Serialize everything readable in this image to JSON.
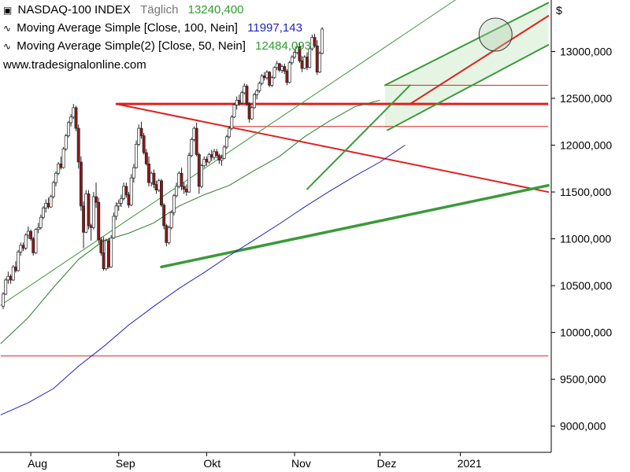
{
  "header": {
    "symbol": "NASDAQ-100 INDEX",
    "period": "Täglich",
    "last_price": "13240,400",
    "ma100_label": "Moving Average Simple  [Close, 100, Nein]",
    "ma100_value": "11997,143",
    "ma50_label": "Moving Average Simple(2)  [Close, 50, Nein]",
    "ma50_value": "12484,093",
    "source": "www.tradesignalonline.com",
    "currency": "$"
  },
  "colors": {
    "up_candle": "#ffffff",
    "down_candle": "#8b1a1a",
    "ma100": "#1f1fbf",
    "ma50": "#2e7d2e",
    "trend_green": "#3a9a3a",
    "resistance_red": "#e02020",
    "last_price_green": "#2e9d2e"
  },
  "chart_data": {
    "type": "candlestick",
    "title": "NASDAQ-100 INDEX",
    "x_tick_labels": [
      "Aug",
      "Sep",
      "Okt",
      "Nov",
      "Dez",
      "2021"
    ],
    "y_tick_labels": [
      "9000,000",
      "9500,000",
      "10000,000",
      "10500,000",
      "11000,000",
      "11500,000",
      "12000,000",
      "12500,000",
      "13000,000"
    ],
    "y_ticks": [
      9000,
      9500,
      10000,
      10500,
      11000,
      11500,
      12000,
      12500,
      13000
    ],
    "ylim": [
      8720,
      13550
    ],
    "candles": [
      [
        10280,
        10430,
        10250,
        10410
      ],
      [
        10410,
        10580,
        10400,
        10560
      ],
      [
        10560,
        10650,
        10520,
        10600
      ],
      [
        10600,
        10620,
        10520,
        10560
      ],
      [
        10560,
        10720,
        10550,
        10700
      ],
      [
        10700,
        10760,
        10640,
        10660
      ],
      [
        10660,
        10880,
        10650,
        10860
      ],
      [
        10860,
        10960,
        10820,
        10930
      ],
      [
        10930,
        10960,
        10870,
        10900
      ],
      [
        10900,
        11060,
        10880,
        11040
      ],
      [
        11040,
        11130,
        11000,
        11080
      ],
      [
        11080,
        11100,
        10980,
        11000
      ],
      [
        11000,
        11020,
        10820,
        10850
      ],
      [
        10850,
        11110,
        10840,
        11100
      ],
      [
        11100,
        11170,
        11060,
        11120
      ],
      [
        11120,
        11260,
        11100,
        11230
      ],
      [
        11230,
        11350,
        11210,
        11330
      ],
      [
        11330,
        11420,
        11280,
        11380
      ],
      [
        11380,
        11440,
        11320,
        11340
      ],
      [
        11340,
        11470,
        11330,
        11450
      ],
      [
        11450,
        11620,
        11430,
        11600
      ],
      [
        11600,
        11720,
        11560,
        11700
      ],
      [
        11700,
        11820,
        11680,
        11800
      ],
      [
        11800,
        11880,
        11740,
        11760
      ],
      [
        11760,
        11980,
        11750,
        11960
      ],
      [
        11960,
        12120,
        11940,
        12100
      ],
      [
        12100,
        12260,
        12080,
        12240
      ],
      [
        12240,
        12330,
        12200,
        12300
      ],
      [
        12300,
        12440,
        12280,
        12400
      ],
      [
        12400,
        12420,
        12150,
        12180
      ],
      [
        12180,
        12220,
        11750,
        11820
      ],
      [
        11820,
        11880,
        11300,
        11350
      ],
      [
        11350,
        11400,
        10900,
        11070
      ],
      [
        11070,
        11520,
        11060,
        11480
      ],
      [
        11480,
        11520,
        11100,
        11140
      ],
      [
        11140,
        11160,
        10980,
        11120
      ],
      [
        11120,
        11500,
        11100,
        11450
      ],
      [
        11450,
        11600,
        11330,
        11390
      ],
      [
        11390,
        11440,
        10950,
        10990
      ],
      [
        10990,
        11020,
        10820,
        10850
      ],
      [
        10850,
        11020,
        10660,
        10680
      ],
      [
        10680,
        11000,
        10660,
        10980
      ],
      [
        10980,
        11010,
        10680,
        10700
      ],
      [
        10700,
        11040,
        10690,
        11010
      ],
      [
        11010,
        11280,
        11000,
        11240
      ],
      [
        11240,
        11390,
        11200,
        11350
      ],
      [
        11350,
        11420,
        11300,
        11380
      ],
      [
        11380,
        11470,
        11340,
        11430
      ],
      [
        11430,
        11600,
        11410,
        11560
      ],
      [
        11560,
        11600,
        11440,
        11470
      ],
      [
        11470,
        11500,
        11330,
        11360
      ],
      [
        11360,
        11690,
        11350,
        11650
      ],
      [
        11650,
        11800,
        11600,
        11760
      ],
      [
        11760,
        12050,
        11750,
        12010
      ],
      [
        12010,
        12220,
        11990,
        12180
      ],
      [
        12180,
        12250,
        12070,
        12100
      ],
      [
        12100,
        12130,
        11900,
        11920
      ],
      [
        11920,
        11960,
        11780,
        11800
      ],
      [
        11800,
        11880,
        11560,
        11600
      ],
      [
        11600,
        11720,
        11560,
        11700
      ],
      [
        11700,
        11740,
        11540,
        11580
      ],
      [
        11580,
        11620,
        11480,
        11520
      ],
      [
        11520,
        11640,
        11500,
        11620
      ],
      [
        11620,
        11640,
        11340,
        11360
      ],
      [
        11360,
        11380,
        11100,
        11140
      ],
      [
        11140,
        11160,
        10920,
        10960
      ],
      [
        10960,
        11140,
        10940,
        11120
      ],
      [
        11120,
        11300,
        11100,
        11280
      ],
      [
        11280,
        11480,
        11250,
        11460
      ],
      [
        11460,
        11600,
        11440,
        11560
      ],
      [
        11560,
        11720,
        11540,
        11700
      ],
      [
        11700,
        11760,
        11520,
        11560
      ],
      [
        11560,
        11600,
        11480,
        11530
      ],
      [
        11530,
        11580,
        11460,
        11500
      ],
      [
        11500,
        11920,
        11490,
        11890
      ],
      [
        11890,
        12080,
        11870,
        12060
      ],
      [
        12060,
        12200,
        12040,
        12180
      ],
      [
        12180,
        12240,
        11880,
        11900
      ],
      [
        11900,
        11920,
        11480,
        11560
      ],
      [
        11560,
        11800,
        11540,
        11780
      ],
      [
        11780,
        11880,
        11760,
        11850
      ],
      [
        11850,
        11880,
        11780,
        11820
      ],
      [
        11820,
        11920,
        11800,
        11900
      ],
      [
        11900,
        11950,
        11830,
        11870
      ],
      [
        11870,
        11960,
        11840,
        11930
      ],
      [
        11930,
        11960,
        11860,
        11890
      ],
      [
        11890,
        11910,
        11800,
        11840
      ],
      [
        11840,
        11900,
        11780,
        11860
      ],
      [
        11860,
        12000,
        11850,
        11980
      ],
      [
        11980,
        12110,
        11960,
        12090
      ],
      [
        12090,
        12200,
        12070,
        12180
      ],
      [
        12180,
        12320,
        12160,
        12300
      ],
      [
        12300,
        12450,
        12290,
        12430
      ],
      [
        12430,
        12520,
        12380,
        12480
      ],
      [
        12480,
        12540,
        12420,
        12450
      ],
      [
        12450,
        12580,
        12440,
        12560
      ],
      [
        12560,
        12660,
        12540,
        12630
      ],
      [
        12630,
        12650,
        12420,
        12440
      ],
      [
        12440,
        12460,
        12240,
        12280
      ],
      [
        12280,
        12420,
        12270,
        12400
      ],
      [
        12400,
        12560,
        12390,
        12540
      ],
      [
        12540,
        12600,
        12490,
        12580
      ],
      [
        12580,
        12680,
        12560,
        12660
      ],
      [
        12660,
        12760,
        12640,
        12740
      ],
      [
        12740,
        12780,
        12690,
        12720
      ],
      [
        12720,
        12800,
        12700,
        12780
      ],
      [
        12780,
        12790,
        12620,
        12640
      ],
      [
        12640,
        12740,
        12620,
        12720
      ],
      [
        12720,
        12840,
        12710,
        12830
      ],
      [
        12830,
        12900,
        12800,
        12870
      ],
      [
        12870,
        12880,
        12780,
        12800
      ],
      [
        12800,
        12860,
        12770,
        12840
      ],
      [
        12840,
        12870,
        12760,
        12790
      ],
      [
        12790,
        12810,
        12640,
        12670
      ],
      [
        12670,
        12900,
        12660,
        12880
      ],
      [
        12880,
        12960,
        12860,
        12940
      ],
      [
        12940,
        13020,
        12920,
        12990
      ],
      [
        12990,
        13080,
        12970,
        13050
      ],
      [
        13050,
        13090,
        12880,
        12900
      ],
      [
        12900,
        12950,
        12780,
        12820
      ],
      [
        12820,
        12960,
        12810,
        12940
      ],
      [
        12940,
        12990,
        12800,
        12830
      ],
      [
        12830,
        13050,
        12820,
        13030
      ],
      [
        13030,
        13180,
        13010,
        13150
      ],
      [
        13150,
        13190,
        13040,
        13060
      ],
      [
        13060,
        13120,
        12750,
        12780
      ],
      [
        12780,
        13000,
        12770,
        12980
      ],
      [
        12980,
        13260,
        12970,
        13240
      ]
    ],
    "ma100": [
      [
        -1,
        9120
      ],
      [
        10,
        9250
      ],
      [
        20,
        9400
      ],
      [
        30,
        9640
      ],
      [
        40,
        9850
      ],
      [
        50,
        10080
      ],
      [
        60,
        10280
      ],
      [
        70,
        10470
      ],
      [
        80,
        10640
      ],
      [
        90,
        10820
      ],
      [
        100,
        10990
      ],
      [
        110,
        11160
      ],
      [
        120,
        11340
      ],
      [
        130,
        11510
      ],
      [
        140,
        11670
      ],
      [
        150,
        11820
      ],
      [
        160,
        12000
      ]
    ],
    "ma50": [
      [
        -1,
        9880
      ],
      [
        10,
        10160
      ],
      [
        20,
        10480
      ],
      [
        30,
        10780
      ],
      [
        40,
        10980
      ],
      [
        50,
        11060
      ],
      [
        60,
        11170
      ],
      [
        70,
        11350
      ],
      [
        80,
        11470
      ],
      [
        90,
        11570
      ],
      [
        100,
        11730
      ],
      [
        110,
        11880
      ],
      [
        120,
        12090
      ],
      [
        130,
        12260
      ],
      [
        140,
        12410
      ],
      [
        150,
        12480
      ]
    ],
    "horizontal_lines": [
      {
        "y": 12440,
        "x0": 45,
        "x1": 217,
        "weight": "thick",
        "color": "red"
      },
      {
        "y": 12640,
        "x0": 152,
        "x1": 217,
        "weight": "thin",
        "color": "red"
      },
      {
        "y": 12200,
        "x0": 88,
        "x1": 217,
        "weight": "thin",
        "color": "red"
      },
      {
        "y": 9750,
        "x0": -1,
        "x1": 217,
        "weight": "thin",
        "color": "red"
      }
    ],
    "trend_lines": [
      {
        "x0": 45,
        "y0": 12440,
        "x1": 217,
        "y1": 11500,
        "color": "red",
        "weight": "medium"
      },
      {
        "x0": 63,
        "y0": 10700,
        "x1": 217,
        "y1": 11570,
        "color": "green",
        "weight": "thick"
      },
      {
        "x0": 121,
        "y0": 11530,
        "x1": 162,
        "y1": 12640,
        "color": "green",
        "weight": "medium"
      },
      {
        "x0": 153,
        "y0": 12160,
        "x1": 217,
        "y1": 13070,
        "color": "green",
        "weight": "medium"
      },
      {
        "x0": 152,
        "y0": 12640,
        "x1": 217,
        "y1": 13520,
        "color": "green",
        "weight": "medium"
      },
      {
        "x0": 162,
        "y0": 12440,
        "x1": 217,
        "y1": 13380,
        "color": "red",
        "weight": "medium"
      },
      {
        "x0": -1,
        "y0": 10290,
        "x1": 180,
        "y1": 13550,
        "color": "green",
        "weight": "thin"
      }
    ],
    "channel_fill": {
      "x0": 152,
      "x1": 217,
      "top": [
        12640,
        13520
      ],
      "bottom": [
        12160,
        13070
      ]
    },
    "highlight_circle": {
      "x": 196,
      "y": 13180
    }
  }
}
